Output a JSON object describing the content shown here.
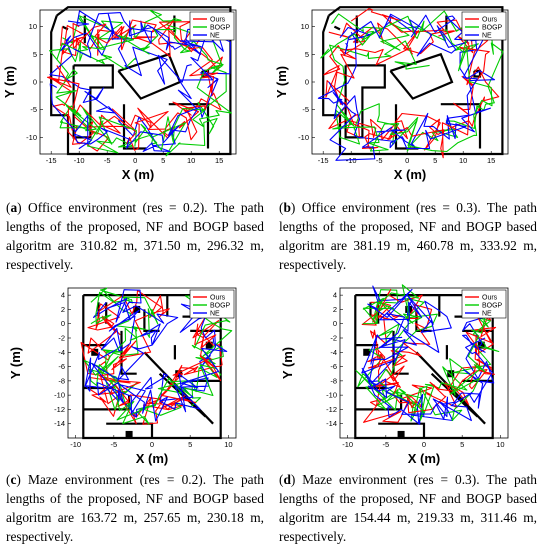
{
  "panels": [
    {
      "id": "a",
      "caption_label": "a",
      "caption_text": " Office environment (res = 0.2). The path lengths of the proposed, NF and BOGP based algoritm are 310.82 m, 371.50 m, 296.32 m, respectively.",
      "chart_data": {
        "type": "line",
        "xlabel": "X (m)",
        "ylabel": "Y (m)",
        "xticks": [
          "-15",
          "-10",
          "-5",
          "0",
          "5",
          "10",
          "15"
        ],
        "yticks": [
          "10",
          "5",
          "0",
          "-5",
          "-10"
        ],
        "xlim": [
          -17,
          18
        ],
        "ylim": [
          -13,
          13
        ],
        "grid": false,
        "legend_position": "top-right",
        "series": [
          {
            "name": "Ours",
            "color": "#ff0000"
          },
          {
            "name": "BOGP",
            "color": "#00cc00"
          },
          {
            "name": "NE",
            "color": "#0000ff"
          }
        ]
      }
    },
    {
      "id": "b",
      "caption_label": "b",
      "caption_text": " Office environment (res = 0.3). The path lengths of the proposed, NF and BOGP based algoritm are 381.19 m, 460.78 m, 333.92 m, respectively.",
      "chart_data": {
        "type": "line",
        "xlabel": "X (m)",
        "ylabel": "Y (m)",
        "xticks": [
          "-15",
          "-10",
          "-5",
          "0",
          "5",
          "10",
          "15"
        ],
        "yticks": [
          "10",
          "5",
          "0",
          "-5",
          "-10"
        ],
        "xlim": [
          -17,
          18
        ],
        "ylim": [
          -13,
          13
        ],
        "grid": false,
        "legend_position": "top-right",
        "series": [
          {
            "name": "Ours",
            "color": "#ff0000"
          },
          {
            "name": "BOGP",
            "color": "#00cc00"
          },
          {
            "name": "NE",
            "color": "#0000ff"
          }
        ]
      }
    },
    {
      "id": "c",
      "caption_label": "c",
      "caption_text": " Maze environment (res = 0.2). The path lengths of the proposed, NF and BOGP based algoritm are 163.72 m, 257.65 m, 230.18 m, respectively.",
      "chart_data": {
        "type": "line",
        "xlabel": "X (m)",
        "ylabel": "Y (m)",
        "xticks": [
          "-10",
          "-5",
          "0",
          "5",
          "10"
        ],
        "yticks": [
          "4",
          "2",
          "0",
          "-2",
          "-4",
          "-6",
          "-8",
          "-10",
          "-12",
          "-14"
        ],
        "xlim": [
          -11,
          11
        ],
        "ylim": [
          -16,
          5
        ],
        "grid": false,
        "legend_position": "top-right",
        "series": [
          {
            "name": "Ours",
            "color": "#ff0000"
          },
          {
            "name": "BOGP",
            "color": "#00cc00"
          },
          {
            "name": "NE",
            "color": "#0000ff"
          }
        ]
      }
    },
    {
      "id": "d",
      "caption_label": "d",
      "caption_text": " Maze environment (res = 0.3). The path lengths of the proposed, NF and BOGP based algoritm are 154.44 m, 219.33 m, 311.46 m, respectively.",
      "chart_data": {
        "type": "line",
        "xlabel": "X (m)",
        "ylabel": "Y (m)",
        "xticks": [
          "-10",
          "-5",
          "0",
          "5",
          "10"
        ],
        "yticks": [
          "4",
          "2",
          "0",
          "-2",
          "-4",
          "-6",
          "-8",
          "-10",
          "-12",
          "-14"
        ],
        "xlim": [
          -11,
          11
        ],
        "ylim": [
          -16,
          5
        ],
        "grid": false,
        "legend_position": "top-right",
        "series": [
          {
            "name": "Ours",
            "color": "#ff0000"
          },
          {
            "name": "BOGP",
            "color": "#00cc00"
          },
          {
            "name": "NE",
            "color": "#0000ff"
          }
        ]
      }
    }
  ]
}
